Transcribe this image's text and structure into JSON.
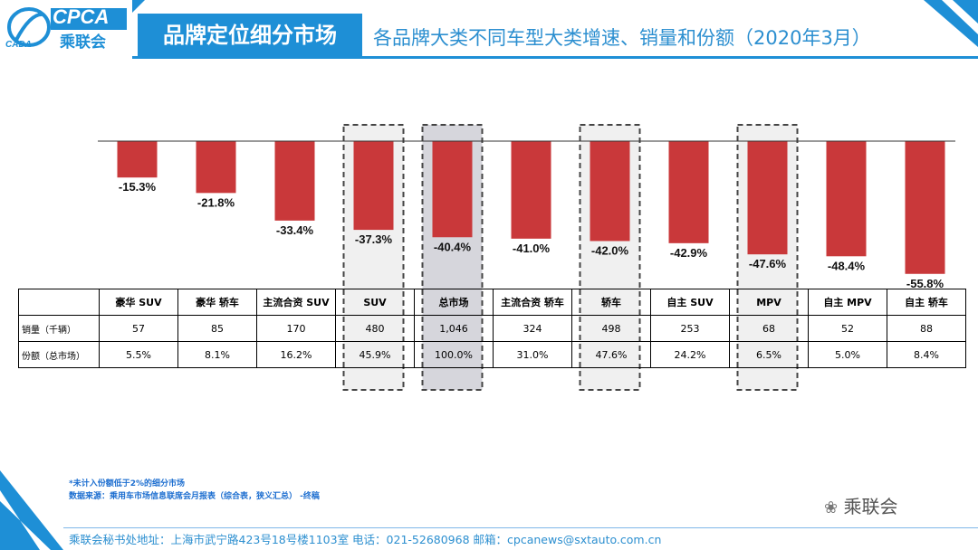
{
  "header": {
    "logo_text": "CPCA",
    "logo_sub": "乘联会",
    "logo_mark": "CADA",
    "title": "品牌定位细分市场",
    "subtitle": "各品牌大类不同车型大类增速、销量和份额（2020年3月）"
  },
  "chart_data": {
    "type": "bar",
    "title": "各品牌大类不同车型大类增速、销量和份额（2020年3月）",
    "categories": [
      "豪华 SUV",
      "豪华 轿车",
      "主流合资 SUV",
      "SUV",
      "总市场",
      "主流合资 轿车",
      "轿车",
      "自主 SUV",
      "MPV",
      "自主 MPV",
      "自主 轿车"
    ],
    "series": [
      {
        "name": "增速",
        "values": [
          -15.3,
          -21.8,
          -33.4,
          -37.3,
          -40.4,
          -41.0,
          -42.0,
          -42.9,
          -47.6,
          -48.4,
          -55.8
        ]
      }
    ],
    "value_labels": [
      "-15.3%",
      "-21.8%",
      "-33.4%",
      "-37.3%",
      "-40.4%",
      "-41.0%",
      "-42.0%",
      "-42.9%",
      "-47.6%",
      "-48.4%",
      "-55.8%"
    ],
    "ylim": [
      -60,
      0
    ],
    "bar_color": "#c9383a",
    "highlighted": [
      "SUV",
      "总市场",
      "轿车",
      "MPV"
    ],
    "table": {
      "rows": [
        {
          "label": "销量（千辆）",
          "values": [
            "57",
            "85",
            "170",
            "480",
            "1,046",
            "324",
            "498",
            "253",
            "68",
            "52",
            "88"
          ]
        },
        {
          "label": "份额（总市场）",
          "values": [
            "5.5%",
            "8.1%",
            "16.2%",
            "45.9%",
            "100.0%",
            "31.0%",
            "47.6%",
            "24.2%",
            "6.5%",
            "5.0%",
            "8.4%"
          ]
        }
      ]
    }
  },
  "notes": {
    "note1": "*未计入份额低于2%的细分市场",
    "note2": "数据来源：乘用车市场信息联席会月报表（综合表，狭义汇总）  -终稿"
  },
  "footer": {
    "text": "乘联会秘书处地址：上海市武宁路423号18号楼1103室  电话：021-52680968   邮箱：cpcanews@sxtauto.com.cn",
    "wechat": "乘联会"
  },
  "colors": {
    "accent": "#1e8fd6",
    "bar": "#c9383a",
    "highlight_fill": "#f0f0f0",
    "market_fill": "#d6d6dc"
  }
}
